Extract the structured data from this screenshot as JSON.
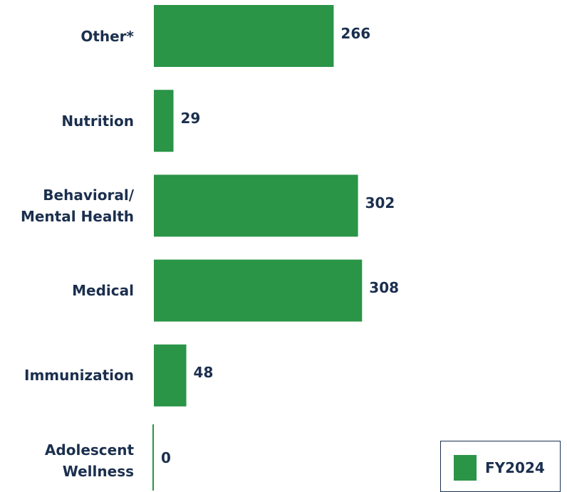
{
  "chart_data": {
    "type": "barh",
    "categories": [
      "Other*",
      "Nutrition",
      "Behavioral/\nMental Health",
      "Medical",
      "Immunization",
      "Adolescent\nWellness"
    ],
    "series": [
      {
        "name": "FY2024",
        "color": "#2a9447",
        "values": [
          266,
          29,
          302,
          308,
          48,
          0
        ]
      }
    ],
    "legend": "bottom-right"
  }
}
